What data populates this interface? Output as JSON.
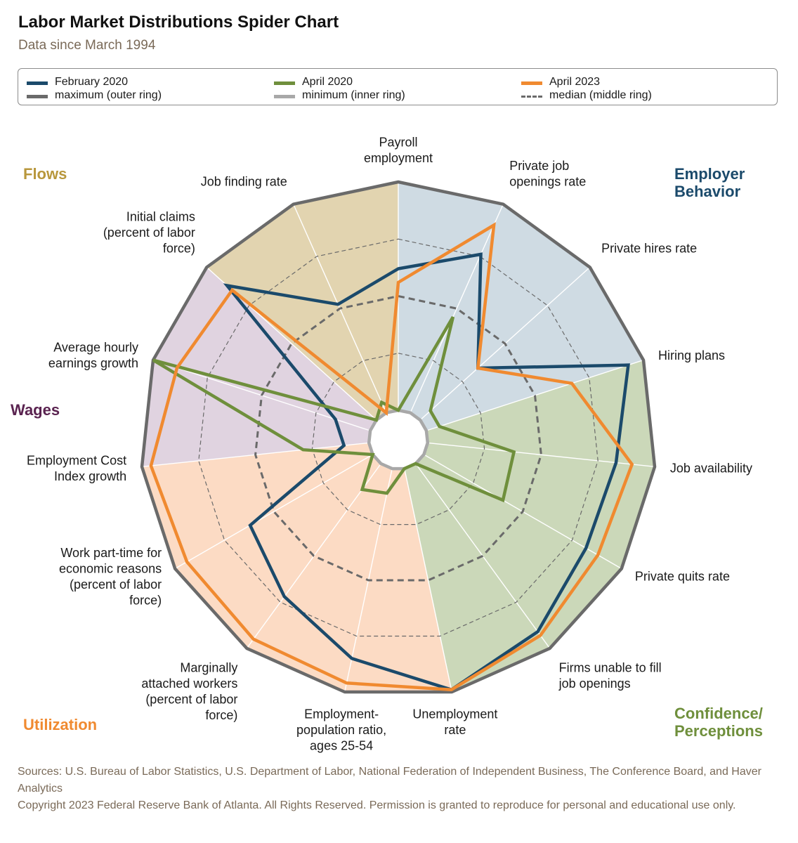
{
  "title": "Labor Market Distributions Spider Chart",
  "subtitle": "Data since March 1994",
  "legend": {
    "items": [
      {
        "label": "February 2020",
        "color": "#1b4a6b",
        "style": "solid"
      },
      {
        "label": "April 2020",
        "color": "#6f8f3c",
        "style": "solid"
      },
      {
        "label": "April 2023",
        "color": "#f08a30",
        "style": "solid"
      },
      {
        "label": "maximum (outer ring)",
        "color": "#6a6a6a",
        "style": "solid"
      },
      {
        "label": "minimum (inner ring)",
        "color": "#a8a8a8",
        "style": "solid"
      },
      {
        "label": "median (middle ring)",
        "color": "#6a6a6a",
        "style": "dashed"
      }
    ]
  },
  "chart_data": {
    "type": "radar",
    "axes": [
      {
        "label": "Payroll employment",
        "lines": [
          "Payroll",
          "employment"
        ]
      },
      {
        "label": "Private job openings rate",
        "lines": [
          "Private job",
          "openings rate"
        ]
      },
      {
        "label": "Private hires rate",
        "lines": [
          "Private hires rate"
        ]
      },
      {
        "label": "Hiring plans",
        "lines": [
          "Hiring plans"
        ]
      },
      {
        "label": "Job availability",
        "lines": [
          "Job availability"
        ]
      },
      {
        "label": "Private quits rate",
        "lines": [
          "Private quits rate"
        ]
      },
      {
        "label": "Firms unable to fill job openings",
        "lines": [
          "Firms unable to fill",
          "job openings"
        ]
      },
      {
        "label": "Unemployment rate",
        "lines": [
          "Unemployment",
          "rate"
        ]
      },
      {
        "label": "Employment-population ratio, ages 25-54",
        "lines": [
          "Employment-",
          "population ratio,",
          "ages 25-54"
        ]
      },
      {
        "label": "Marginally attached workers (percent of labor force)",
        "lines": [
          "Marginally",
          "attached workers",
          "(percent of labor",
          "force)"
        ]
      },
      {
        "label": "Work part-time for economic reasons (percent of labor force)",
        "lines": [
          "Work part-time for",
          "economic reasons",
          "(percent of labor",
          "force)"
        ]
      },
      {
        "label": "Employment Cost Index growth",
        "lines": [
          "Employment Cost",
          "Index growth"
        ]
      },
      {
        "label": "Average hourly earnings growth",
        "lines": [
          "Average hourly",
          "earnings growth"
        ]
      },
      {
        "label": "Initial claims (percent of labor force)",
        "lines": [
          "Initial claims",
          "(percent of labor",
          "force)"
        ]
      },
      {
        "label": "Job finding rate",
        "lines": [
          "Job finding rate"
        ]
      }
    ],
    "scale": "0 = minimum (inner ring), 0.5 = median (middle ring), 1 = maximum (outer ring)",
    "series": [
      {
        "name": "February 2020",
        "values": [
          0.62,
          0.76,
          0.34,
          0.93,
          0.83,
          0.82,
          0.91,
          0.99,
          0.85,
          0.72,
          0.62,
          0.11,
          0.16,
          0.88,
          0.52
        ]
      },
      {
        "name": "April 2020",
        "values": [
          0.0,
          0.46,
          0.06,
          0.06,
          0.38,
          0.4,
          0.0,
          0.0,
          0.11,
          0.14,
          0.0,
          0.29,
          1.0,
          0.0,
          0.05
        ]
      },
      {
        "name": "April 2023",
        "values": [
          0.56,
          0.9,
          0.34,
          0.67,
          0.9,
          0.88,
          0.93,
          0.99,
          0.96,
          0.95,
          0.94,
          0.96,
          0.89,
          0.85,
          0.0
        ]
      }
    ],
    "groups": [
      {
        "name": "Employer Behavior",
        "color": "#1b4a6b",
        "fill": "#cfdbe3",
        "axes": [
          0,
          1,
          2,
          3
        ]
      },
      {
        "name": "Confidence/ Perceptions",
        "color": "#6f8f3c",
        "fill": "#cbd8b9",
        "axes": [
          3,
          4,
          5,
          6,
          7
        ]
      },
      {
        "name": "Utilization",
        "color": "#f08a30",
        "fill": "#fcdbc4",
        "axes": [
          7,
          8,
          9,
          10,
          11
        ]
      },
      {
        "name": "Wages",
        "color": "#5a2350",
        "fill": "#e0d3e0",
        "axes": [
          11,
          12,
          13
        ]
      },
      {
        "name": "Flows",
        "color": "#b8973c",
        "fill": "#e2d4b0",
        "axes": [
          13,
          14,
          0
        ]
      }
    ],
    "group_labels": [
      {
        "name": "Flows",
        "lines": [
          "Flows"
        ],
        "color": "#b8973c"
      },
      {
        "name": "Employer Behavior",
        "lines": [
          "Employer",
          "Behavior"
        ],
        "color": "#1b4a6b"
      },
      {
        "name": "Wages",
        "lines": [
          "Wages"
        ],
        "color": "#5a2350"
      },
      {
        "name": "Confidence/ Perceptions",
        "lines": [
          "Confidence/",
          "Perceptions"
        ],
        "color": "#6f8f3c"
      },
      {
        "name": "Utilization",
        "lines": [
          "Utilization"
        ],
        "color": "#f08a30"
      }
    ]
  },
  "sources": "Sources: U.S. Bureau of Labor Statistics, U.S. Department of Labor, National Federation of Independent Business, The Conference Board, and Haver Analytics",
  "copyright": "Copyright 2023 Federal Reserve Bank of Atlanta. All Rights Reserved. Permission is granted to reproduce for personal and educational use only."
}
